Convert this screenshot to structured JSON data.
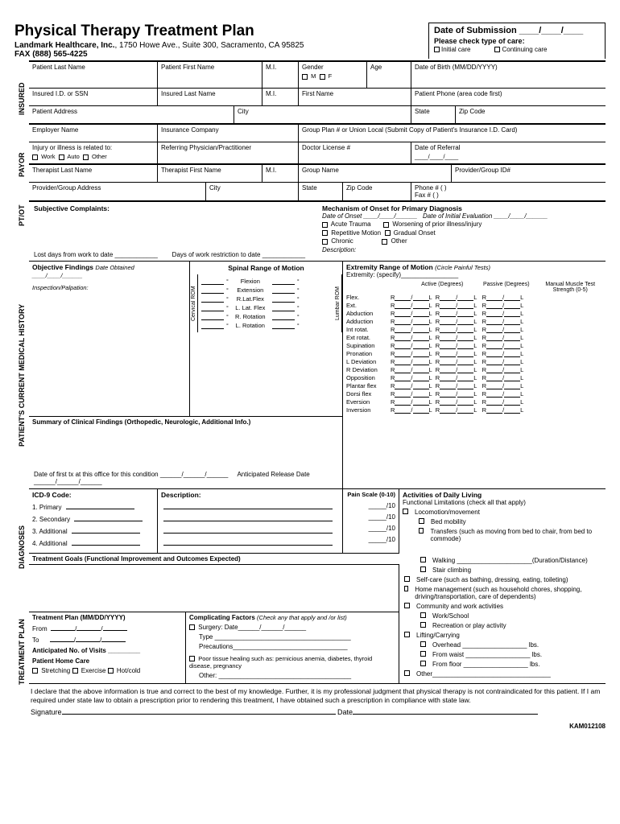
{
  "header": {
    "title": "Physical Therapy Treatment Plan",
    "company_bold": "Landmark Healthcare, Inc.",
    "company_addr": ", 1750 Howe Ave., Suite 300, Sacramento, CA  95825",
    "fax": "FAX (888) 565-4225",
    "date_sub": "Date of Submission ____/____/____",
    "care_label": "Please check type of care:",
    "care_initial": "Initial care",
    "care_cont": "Continuing care"
  },
  "sections": {
    "insured": "INSURED",
    "payor": "PAYOR",
    "ptot": "PT/OT",
    "history": "PATIENT'S CURRENT MEDICAL HISTORY",
    "diagnoses": "DIAGNOSES",
    "tplan": "TREATMENT PLAN"
  },
  "insured": {
    "last": "Patient Last Name",
    "first": "Patient First Name",
    "mi": "M.I.",
    "gender": "Gender",
    "gender_m": "M",
    "gender_f": "F",
    "age": "Age",
    "dob": "Date of Birth (MM/DD/YYYY)",
    "id": "Insured I.D. or SSN",
    "ins_last": "Insured Last Name",
    "ins_mi": "M.I.",
    "ins_first": "First Name",
    "phone": "Patient Phone (area code first)",
    "addr": "Patient Address",
    "city": "City",
    "state": "State",
    "zip": "Zip Code"
  },
  "payor": {
    "employer": "Employer Name",
    "ins_co": "Insurance Company",
    "group_plan": "Group Plan # or Union Local (Submit Copy of Patient's Insurance I.D. Card)",
    "injury": "Injury or illness is related to:",
    "work": "Work",
    "auto": "Auto",
    "other": "Other",
    "referring": "Referring Physician/Practitioner",
    "license": "Doctor License #",
    "referral": "Date of Referral",
    "referral_date": "____/____/____"
  },
  "ptot": {
    "t_last": "Therapist Last Name",
    "t_first": "Therapist First Name",
    "mi": "M.I.",
    "group": "Group Name",
    "provider_id": "Provider/Group ID#",
    "addr": "Provider/Group Address",
    "city": "City",
    "state": "State",
    "zip": "Zip Code",
    "phone": "Phone #  (           )",
    "fax": "Fax #     (           )"
  },
  "subj": {
    "title": "Subjective Complaints:",
    "mech_title": "Mechanism of Onset for Primary Diagnosis",
    "date_onset": "Date of Onset ____/____/______",
    "date_eval": "Date of Initial Evaluation ____/____/______",
    "acute": "Acute Trauma",
    "worsening": "Worsening of prior illness/injury",
    "repetitive": "Repetitive Motion",
    "gradual": "Gradual Onset",
    "chronic": "Chronic",
    "other": "Other",
    "desc": "Description:",
    "lost_days": "Lost days from work to date ____________",
    "restrict": "Days of work restriction to date ____________"
  },
  "obj": {
    "title": "Objective Findings",
    "date": "Date Obtained ____/____/______",
    "insp": "Inspection/Palpation:"
  },
  "rom": {
    "title": "Spinal Range of Motion",
    "cervical": "Cervical ROM",
    "lumbar": "Lumbar ROM",
    "moves": [
      "Flexion",
      "Extension",
      "R.Lat.Flex",
      "L. Lat. Flex",
      "R. Rotation",
      "L. Rotation"
    ]
  },
  "erom": {
    "title": "Extremity Range of Motion",
    "circle": "(Circle Painful Tests)",
    "specify": "Extremity: (specify)________________",
    "col1": "Active (Degrees)",
    "col2": "Passive (Degrees)",
    "col3": "Manual Muscle Test Strength (0-5)",
    "rows": [
      "Flex.",
      "Ext.",
      "Abduction",
      "Adduction",
      "Int rotat.",
      "Ext rotat.",
      "Supination",
      "Pronation",
      "L Deviation",
      "R Deviation",
      "Opposition",
      "Plantar flex",
      "Dorsi flex",
      "Eversion",
      "Inversion"
    ]
  },
  "summary": {
    "title": "Summary of Clinical Findings (Orthopedic, Neurologic, Additional Info.)",
    "first_tx": "Date of first tx at this office for this condition ______/______/______",
    "release": "Anticipated Release Date ______/______/______"
  },
  "diag": {
    "icd": "ICD-9 Code:",
    "desc": "Description:",
    "scale": "Pain Scale (0-10)",
    "lines": [
      "1. Primary",
      "2. Secondary",
      "3. Additional",
      "4. Additional"
    ],
    "per10": "_____/10"
  },
  "adl": {
    "title": "Activities of Daily Living",
    "sub": "Functional Limitations (check all that apply)",
    "loco": "Locomotion/movement",
    "bed": "Bed mobility",
    "transfer": "Transfers (such as moving from bed to chair, from bed to commode)",
    "walking": "Walking _____________________(Duration/Distance)",
    "stair": "Stair climbing",
    "self": "Self-care (such as bathing, dressing, eating, toileting)",
    "home": "Home management (such as household chores, shopping, driving/transportation, care of dependents)",
    "comm": "Community and work activities",
    "work": "Work/School",
    "rec": "Recreation or play activity",
    "lift": "Lifting/Carrying",
    "overhead": "Overhead  __________________ lbs.",
    "waist": "From waist __________________ lbs.",
    "floor": "From floor __________________ lbs.",
    "other": "Other_________________________________"
  },
  "tplan": {
    "goals": "Treatment Goals (Functional Improvement and Outcomes Expected)",
    "plan_title": "Treatment Plan (MM/DD/YYYY)",
    "from": "From",
    "to": "To",
    "visits": "Anticipated No. of Visits _________",
    "home": "Patient Home Care",
    "stretch": "Stretching",
    "exercise": "Exercise",
    "hotcold": "Hot/cold",
    "comp_title": "Complicating Factors",
    "comp_sub": "(Check any that apply and /or list)",
    "surgery": "Surgery: Date______/______/______",
    "type": "Type ______________________________________",
    "precautions": "Precautions________________________________",
    "poor": "Poor tissue healing such as: pernicious anemia, diabetes, thyroid disease, pregnancy",
    "other": "Other: _____________________________________"
  },
  "declare": {
    "text": "I declare that the above information is true and correct to the best of my knowledge. Further, it is my professional judgment that physical therapy is not contraindicated for this patient.  If I am required under state law to obtain a prescription prior to rendering this treatment, I have obtained such a prescription in compliance with state law.",
    "sig": "Signature",
    "date": "Date"
  },
  "formid": "KAM012108"
}
